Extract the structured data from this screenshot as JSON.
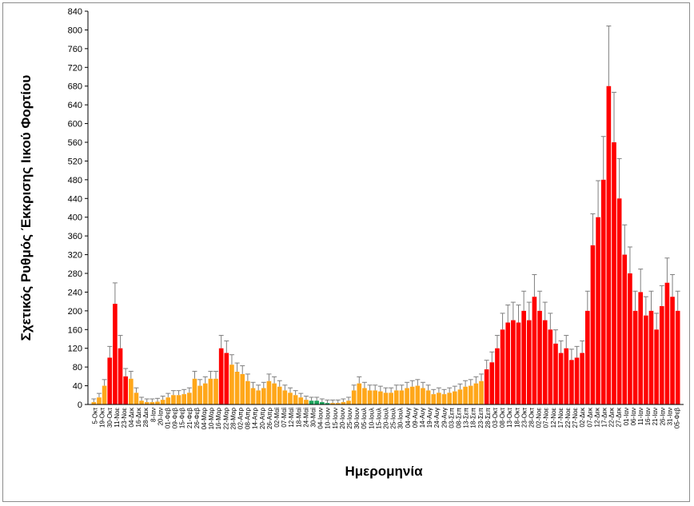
{
  "chart_data": {
    "type": "bar",
    "title": "",
    "xlabel": "Ημερομηνία",
    "ylabel": "Σχετικός Ρυθμός Έκκρισης Ιικού Φορτίου",
    "ylim": [
      0,
      840
    ],
    "yticks": [
      0,
      40,
      80,
      120,
      160,
      200,
      240,
      280,
      320,
      360,
      400,
      440,
      480,
      520,
      560,
      600,
      640,
      680,
      720,
      760,
      800,
      840
    ],
    "grid": false,
    "error_bars": true,
    "colors": {
      "red": "#ff0000",
      "orange": "#ffa71a",
      "green": "#1aa35a",
      "error_bar": "#7f7f7f",
      "axis": "#000000"
    },
    "xtick_labels": [
      "5-Οκτ",
      "19-Οκτ",
      "30-Οκτ",
      "11-Νοε",
      "23-Νοε",
      "04-Δεκ",
      "16-Δεκ",
      "28-Δεκ",
      "8-Ιαν",
      "20-Ιαν",
      "01-Φεβ",
      "09-Φεβ",
      "15-Φεβ",
      "21-Φεβ",
      "26-Φεβ",
      "04-Μαρ",
      "10-Μαρ",
      "16-Μαρ",
      "22-Μαρ",
      "28-Μαρ",
      "02-Απρ",
      "08-Απρ",
      "14-Απρ",
      "20-Απρ",
      "26-Απρ",
      "02-Μαϊ",
      "07-Μαϊ",
      "12-Μαϊ",
      "18-Μαϊ",
      "24-Μαϊ",
      "30-Μαϊ",
      "04-Ιουν",
      "10-Ιουν",
      "15-Ιουν",
      "20-Ιουν",
      "25-Ιουν",
      "30-Ιουν",
      "05-Ιουλ",
      "10-Ιουλ",
      "15-Ιουλ",
      "20-Ιουλ",
      "25-Ιουλ",
      "30-Ιουλ",
      "04-Αυγ",
      "09-Αυγ",
      "14-Αυγ",
      "19-Αυγ",
      "24-Αυγ",
      "29-Αυγ",
      "03-Σεπ",
      "08-Σεπ",
      "13-Σεπ",
      "18-Σεπ",
      "23-Σεπ",
      "28-Σεπ",
      "03-Οκτ",
      "08-Οκτ",
      "13-Οκτ",
      "18-Οκτ",
      "23-Οκτ",
      "28-Οκτ",
      "02-Νοε",
      "07-Νοε",
      "12-Νοε",
      "17-Νοε",
      "22-Νοε",
      "27-Νοε",
      "02-Δεκ",
      "07-Δεκ",
      "12-Δεκ",
      "17-Δεκ",
      "22-Δεκ",
      "27-Δεκ",
      "01-Ιαν",
      "06-Ιαν",
      "11-Ιαν",
      "16-Ιαν",
      "21-Ιαν",
      "26-Ιαν",
      "31-Ιαν",
      "05-Φεβ"
    ],
    "series": [
      {
        "points": [
          [
            0,
            5,
            "orange"
          ],
          [
            1,
            15,
            "orange"
          ],
          [
            2,
            40,
            "orange"
          ],
          [
            3,
            100,
            "red"
          ],
          [
            4,
            215,
            "red"
          ],
          [
            5,
            120,
            "red"
          ],
          [
            6,
            60,
            "red"
          ],
          [
            7,
            55,
            "orange"
          ],
          [
            8,
            25,
            "orange"
          ],
          [
            9,
            8,
            "orange"
          ],
          [
            10,
            5,
            "orange"
          ],
          [
            11,
            5,
            "orange"
          ],
          [
            12,
            6,
            "orange"
          ],
          [
            13,
            10,
            "orange"
          ],
          [
            14,
            15,
            "orange"
          ],
          [
            15,
            20,
            "orange"
          ],
          [
            16,
            20,
            "orange"
          ],
          [
            17,
            22,
            "orange"
          ],
          [
            18,
            25,
            "orange"
          ],
          [
            19,
            55,
            "orange"
          ],
          [
            20,
            40,
            "orange"
          ],
          [
            21,
            45,
            "orange"
          ],
          [
            22,
            55,
            "orange"
          ],
          [
            23,
            55,
            "orange"
          ],
          [
            24,
            120,
            "red"
          ],
          [
            25,
            110,
            "red"
          ],
          [
            26,
            85,
            "orange"
          ],
          [
            27,
            70,
            "orange"
          ],
          [
            28,
            65,
            "orange"
          ],
          [
            29,
            50,
            "orange"
          ],
          [
            30,
            35,
            "orange"
          ],
          [
            31,
            30,
            "orange"
          ],
          [
            32,
            35,
            "orange"
          ],
          [
            33,
            50,
            "orange"
          ],
          [
            34,
            45,
            "orange"
          ],
          [
            35,
            38,
            "orange"
          ],
          [
            36,
            30,
            "orange"
          ],
          [
            37,
            25,
            "orange"
          ],
          [
            38,
            20,
            "orange"
          ],
          [
            39,
            15,
            "orange"
          ],
          [
            40,
            10,
            "orange"
          ],
          [
            41,
            8,
            "green"
          ],
          [
            42,
            8,
            "green"
          ],
          [
            43,
            5,
            "green"
          ],
          [
            44,
            3,
            "green"
          ],
          [
            45,
            3,
            "orange"
          ],
          [
            46,
            3,
            "orange"
          ],
          [
            47,
            5,
            "orange"
          ],
          [
            48,
            8,
            "orange"
          ],
          [
            49,
            30,
            "orange"
          ],
          [
            50,
            45,
            "orange"
          ],
          [
            51,
            35,
            "orange"
          ],
          [
            52,
            30,
            "orange"
          ],
          [
            53,
            30,
            "orange"
          ],
          [
            54,
            28,
            "orange"
          ],
          [
            55,
            25,
            "orange"
          ],
          [
            56,
            25,
            "orange"
          ],
          [
            57,
            30,
            "orange"
          ],
          [
            58,
            30,
            "orange"
          ],
          [
            59,
            35,
            "orange"
          ],
          [
            60,
            38,
            "orange"
          ],
          [
            61,
            40,
            "orange"
          ],
          [
            62,
            35,
            "orange"
          ],
          [
            63,
            30,
            "orange"
          ],
          [
            64,
            22,
            "orange"
          ],
          [
            65,
            25,
            "orange"
          ],
          [
            66,
            22,
            "orange"
          ],
          [
            67,
            25,
            "orange"
          ],
          [
            68,
            28,
            "orange"
          ],
          [
            69,
            32,
            "orange"
          ],
          [
            70,
            38,
            "orange"
          ],
          [
            71,
            40,
            "orange"
          ],
          [
            72,
            45,
            "orange"
          ],
          [
            73,
            50,
            "orange"
          ],
          [
            74,
            75,
            "red"
          ],
          [
            75,
            90,
            "red"
          ],
          [
            76,
            120,
            "red"
          ],
          [
            77,
            160,
            "red"
          ],
          [
            78,
            175,
            "red"
          ],
          [
            79,
            180,
            "red"
          ],
          [
            80,
            175,
            "red"
          ],
          [
            81,
            200,
            "red"
          ],
          [
            82,
            180,
            "red"
          ],
          [
            83,
            230,
            "red"
          ],
          [
            84,
            200,
            "red"
          ],
          [
            85,
            180,
            "red"
          ],
          [
            86,
            160,
            "red"
          ],
          [
            87,
            130,
            "red"
          ],
          [
            88,
            110,
            "red"
          ],
          [
            89,
            120,
            "red"
          ],
          [
            90,
            95,
            "red"
          ],
          [
            91,
            100,
            "red"
          ],
          [
            92,
            110,
            "red"
          ],
          [
            93,
            200,
            "red"
          ],
          [
            94,
            340,
            "red"
          ],
          [
            95,
            400,
            "red"
          ],
          [
            96,
            480,
            "red"
          ],
          [
            97,
            680,
            "red"
          ],
          [
            98,
            560,
            "red"
          ],
          [
            99,
            440,
            "red"
          ],
          [
            100,
            320,
            "red"
          ],
          [
            101,
            280,
            "red"
          ],
          [
            102,
            200,
            "red"
          ],
          [
            103,
            240,
            "red"
          ],
          [
            104,
            190,
            "red"
          ],
          [
            105,
            200,
            "red"
          ],
          [
            106,
            160,
            "red"
          ],
          [
            107,
            210,
            "red"
          ],
          [
            108,
            260,
            "red"
          ],
          [
            109,
            230,
            "red"
          ],
          [
            110,
            200,
            "red"
          ]
        ]
      }
    ]
  }
}
